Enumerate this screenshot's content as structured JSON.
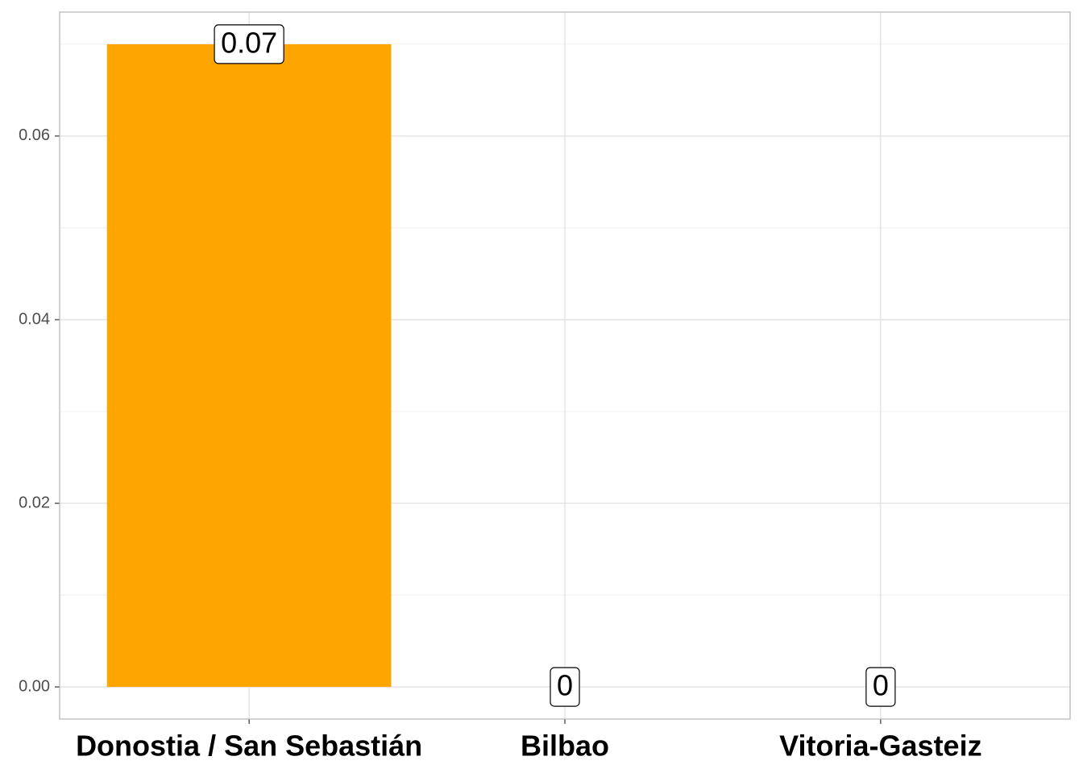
{
  "chart_data": {
    "type": "bar",
    "categories": [
      "Donostia / San Sebastián",
      "Bilbao",
      "Vitoria-Gasteiz"
    ],
    "values": [
      0.07,
      0,
      0
    ],
    "color": "#FFA500",
    "ylim": [
      -0.0035,
      0.0735
    ],
    "yticks": [
      {
        "value": 0,
        "label": "0.00"
      },
      0.02,
      0.04,
      0.06
    ],
    "y_minor_grid": [
      0.01,
      0.03,
      0.05,
      0.07
    ],
    "grid": true
  }
}
